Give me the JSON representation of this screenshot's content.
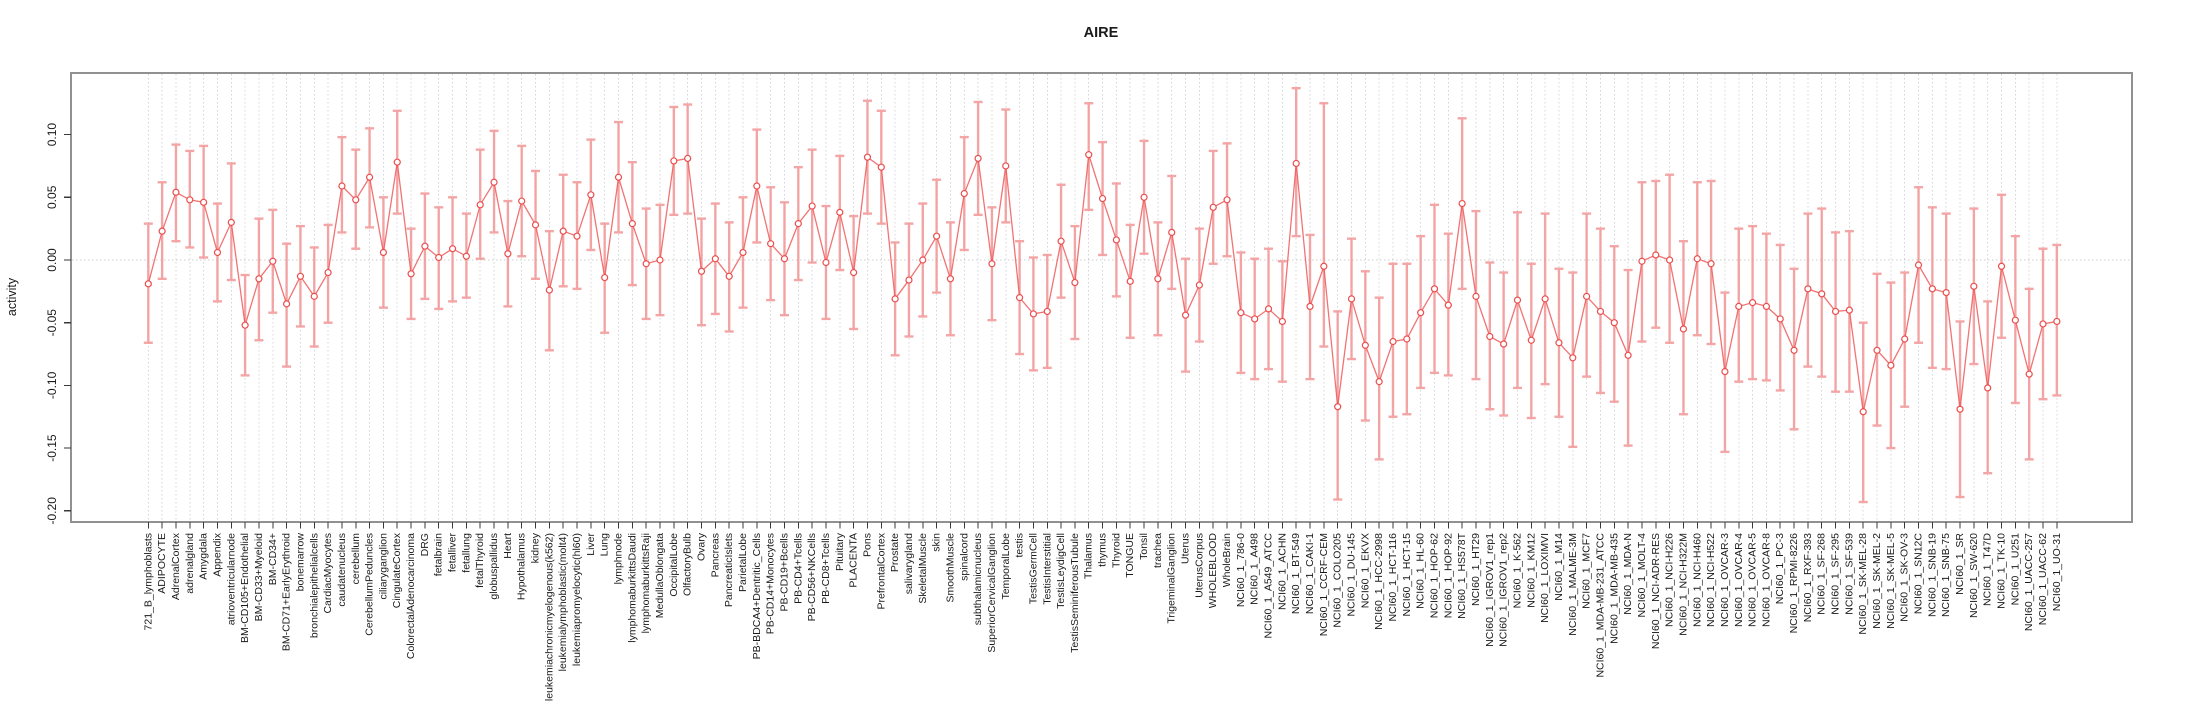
{
  "title": "AIRE",
  "y_axis": {
    "label": "activity",
    "tick_labels": [
      "0.10",
      "0.05",
      "0.00",
      "-0.05",
      "-0.10",
      "-0.15",
      "-0.20"
    ],
    "tick_values": [
      0.1,
      0.05,
      0.0,
      -0.05,
      -0.1,
      -0.15,
      -0.2
    ]
  },
  "colors": {
    "point": "#ec4d4d",
    "line": "#ee5a5a",
    "error_bar": "#f29191",
    "grid": "#d4d4d4",
    "zero_line": "#cfcfcf",
    "border": "#919191",
    "tick": "#3a3a3a",
    "text": "#1a1a1a",
    "background": "#ffffff"
  },
  "chart_data": {
    "type": "line",
    "title": "AIRE",
    "xlabel": "",
    "ylabel": "activity",
    "ylim": [
      -0.209,
      0.149
    ],
    "grid": "vertical dotted gridline per category; dotted horizontal line at 0",
    "legend": "none",
    "marker": "open-circle",
    "error_bars": true,
    "categories": [
      "721_B_lymphoblasts",
      "ADIPOCYTE",
      "AdrenalCortex",
      "adrenalgland",
      "Amygdala",
      "Appendix",
      "atrioventricularnode",
      "BM-CD105+Endothelial",
      "BM-CD33+Myeloid",
      "BM-CD34+",
      "BM-CD71+EarlyErythroid",
      "bonemarrow",
      "bronchialepithelialcells",
      "CardiacMyocytes",
      "caudatenucleus",
      "cerebellum",
      "CerebellumPeduncles",
      "ciliaryganglion",
      "CingulateCortex",
      "ColorectalAdenocarcinoma",
      "DRG",
      "fetalbrain",
      "fetalliver",
      "fetallung",
      "fetalThyroid",
      "globuspallidus",
      "Heart",
      "Hypothalamus",
      "kidney",
      "leukemiachronicmyelogenous(k562)",
      "leukemialymphoblastic(molt4)",
      "leukemiapromyelocytic(hl60)",
      "Liver",
      "Lung",
      "lymphnode",
      "lymphomaburkittsDaudi",
      "lymphomaburkittsRaji",
      "MedullaOblongata",
      "OccipitalLobe",
      "OlfactoryBulb",
      "Ovary",
      "Pancreas",
      "PancreaticIslets",
      "ParietalLobe",
      "PB-BDCA4+Dentritic_Cells",
      "PB-CD14+Monocytes",
      "PB-CD19+Bcells",
      "PB-CD4+Tcells",
      "PB-CD56+NKCells",
      "PB-CD8+Tcells",
      "Pituitary",
      "PLACENTA",
      "Pons",
      "PrefrontalCortex",
      "Prostate",
      "salivarygland",
      "SkeletalMuscle",
      "skin",
      "SmoothMuscle",
      "spinalcord",
      "subthalamicnucleus",
      "SuperiorCervicalGanglion",
      "TemporalLobe",
      "testis",
      "TestisGermCell",
      "TestisInterstitial",
      "TestisLeydigCell",
      "TestisSeminiferousTubule",
      "Thalamus",
      "thymus",
      "Thyroid",
      "TONGUE",
      "Tonsil",
      "trachea",
      "TrigeminalGanglion",
      "Uterus",
      "UterusCorpus",
      "WHOLEBLOOD",
      "WholeBrain",
      "NCI60_1_786-0",
      "NCI60_1_A498",
      "NCI60_1_A549_ATCC",
      "NCI60_1_ACHN",
      "NCI60_1_BT-549",
      "NCI60_1_CAKI-1",
      "NCI60_1_CCRF-CEM",
      "NCI60_1_COLO205",
      "NCI60_1_DU-145",
      "NCI60_1_EKVX",
      "NCI60_1_HCC-2998",
      "NCI60_1_HCT-116",
      "NCI60_1_HCT-15",
      "NCI60_1_HL-60",
      "NCI60_1_HOP-62",
      "NCI60_1_HOP-92",
      "NCI60_1_HS578T",
      "NCI60_1_HT29",
      "NCI60_1_IGROV1_rep1",
      "NCI60_1_IGROV1_rep2",
      "NCI60_1_K-562",
      "NCI60_1_KM12",
      "NCI60_1_LOXIMVI",
      "NCI60_1_M14",
      "NCI60_1_MALME-3M",
      "NCI60_1_MCF7",
      "NCI60_1_MDA-MB-231_ATCC",
      "NCI60_1_MDA-MB-435",
      "NCI60_1_MDA-N",
      "NCI60_1_MOLT-4",
      "NCI60_1_NCI-ADR-RES",
      "NCI60_1_NCI-H226",
      "NCI60_1_NCI-H322M",
      "NCI60_1_NCI-H460",
      "NCI60_1_NCI-H522",
      "NCI60_1_OVCAR-3",
      "NCI60_1_OVCAR-4",
      "NCI60_1_OVCAR-5",
      "NCI60_1_OVCAR-8",
      "NCI60_1_PC-3",
      "NCI60_1_RPMI-8226",
      "NCI60_1_RXF-393",
      "NCI60_1_SF-268",
      "NCI60_1_SF-295",
      "NCI60_1_SF-539",
      "NCI60_1_SK-MEL-28",
      "NCI60_1_SK-MEL-2",
      "NCI60_1_SK-MEL-5",
      "NCI60_1_SK-OV-3",
      "NCI60_1_SN12C",
      "NCI60_1_SNB-19",
      "NCI60_1_SNB-75",
      "NCI60_1_SR",
      "NCI60_1_SW-620",
      "NCI60_1_T47D",
      "NCI60_1_TK-10",
      "NCI60_1_U251",
      "NCI60_1_UACC-257",
      "NCI60_1_UACC-62",
      "NCI60_1_UO-31"
    ],
    "values": [
      -0.019,
      0.023,
      0.054,
      0.048,
      0.046,
      0.006,
      0.03,
      -0.052,
      -0.015,
      -0.001,
      -0.035,
      -0.013,
      -0.029,
      -0.01,
      0.059,
      0.048,
      0.066,
      0.006,
      0.078,
      -0.011,
      0.011,
      0.002,
      0.009,
      0.003,
      0.044,
      0.062,
      0.005,
      0.047,
      0.028,
      -0.024,
      0.023,
      0.019,
      0.052,
      -0.014,
      0.066,
      0.029,
      -0.003,
      0.0,
      0.079,
      0.081,
      -0.009,
      0.001,
      -0.013,
      0.006,
      0.059,
      0.013,
      0.001,
      0.029,
      0.043,
      -0.002,
      0.038,
      -0.01,
      0.082,
      0.074,
      -0.031,
      -0.016,
      0.0,
      0.019,
      -0.015,
      0.053,
      0.081,
      -0.003,
      0.075,
      -0.03,
      -0.043,
      -0.041,
      0.015,
      -0.018,
      0.084,
      0.049,
      0.016,
      -0.017,
      0.05,
      -0.015,
      0.022,
      -0.044,
      -0.02,
      0.042,
      0.048,
      -0.042,
      -0.047,
      -0.039,
      -0.049,
      0.077,
      -0.037,
      -0.005,
      -0.117,
      -0.031,
      -0.068,
      -0.097,
      -0.065,
      -0.063,
      -0.042,
      -0.023,
      -0.036,
      0.045,
      -0.029,
      -0.061,
      -0.067,
      -0.032,
      -0.064,
      -0.031,
      -0.066,
      -0.078,
      -0.029,
      -0.041,
      -0.05,
      -0.076,
      -0.001,
      0.004,
      0.0,
      -0.055,
      0.001,
      -0.003,
      -0.089,
      -0.037,
      -0.034,
      -0.037,
      -0.047,
      -0.072,
      -0.023,
      -0.027,
      -0.041,
      -0.04,
      -0.121,
      -0.072,
      -0.084,
      -0.063,
      -0.004,
      -0.023,
      -0.026,
      -0.119,
      -0.021,
      -0.102,
      -0.005,
      -0.048,
      -0.091,
      -0.051,
      -0.049
    ],
    "err_lo": [
      -0.066,
      -0.015,
      0.015,
      0.01,
      0.002,
      -0.033,
      -0.016,
      -0.092,
      -0.064,
      -0.042,
      -0.085,
      -0.053,
      -0.069,
      -0.05,
      0.022,
      0.009,
      0.026,
      -0.038,
      0.037,
      -0.047,
      -0.031,
      -0.039,
      -0.033,
      -0.03,
      0.001,
      0.022,
      -0.037,
      0.003,
      -0.015,
      -0.072,
      -0.021,
      -0.023,
      0.008,
      -0.058,
      0.022,
      -0.02,
      -0.047,
      -0.044,
      0.036,
      0.037,
      -0.052,
      -0.043,
      -0.057,
      -0.038,
      0.014,
      -0.032,
      -0.044,
      -0.016,
      -0.002,
      -0.047,
      -0.008,
      -0.055,
      0.037,
      0.029,
      -0.076,
      -0.061,
      -0.045,
      -0.026,
      -0.06,
      0.008,
      0.036,
      -0.048,
      0.03,
      -0.075,
      -0.088,
      -0.086,
      -0.03,
      -0.063,
      0.04,
      0.004,
      -0.029,
      -0.062,
      0.005,
      -0.06,
      -0.023,
      -0.089,
      -0.065,
      -0.003,
      0.003,
      -0.09,
      -0.095,
      -0.087,
      -0.097,
      0.019,
      -0.095,
      -0.069,
      -0.191,
      -0.079,
      -0.128,
      -0.159,
      -0.125,
      -0.123,
      -0.102,
      -0.09,
      -0.092,
      -0.023,
      -0.095,
      -0.119,
      -0.124,
      -0.102,
      -0.126,
      -0.099,
      -0.125,
      -0.149,
      -0.093,
      -0.106,
      -0.113,
      -0.148,
      -0.065,
      -0.054,
      -0.066,
      -0.123,
      -0.06,
      -0.067,
      -0.153,
      -0.097,
      -0.095,
      -0.096,
      -0.104,
      -0.135,
      -0.085,
      -0.093,
      -0.105,
      -0.105,
      -0.193,
      -0.132,
      -0.15,
      -0.117,
      -0.066,
      -0.086,
      -0.087,
      -0.189,
      -0.083,
      -0.17,
      -0.062,
      -0.114,
      -0.159,
      -0.111,
      -0.108
    ],
    "err_hi": [
      0.029,
      0.062,
      0.092,
      0.087,
      0.091,
      0.045,
      0.077,
      -0.012,
      0.033,
      0.04,
      0.013,
      0.027,
      0.01,
      0.028,
      0.098,
      0.088,
      0.105,
      0.05,
      0.119,
      0.025,
      0.053,
      0.042,
      0.05,
      0.037,
      0.088,
      0.103,
      0.047,
      0.091,
      0.071,
      0.023,
      0.068,
      0.062,
      0.096,
      0.029,
      0.11,
      0.078,
      0.041,
      0.044,
      0.122,
      0.124,
      0.033,
      0.045,
      0.03,
      0.05,
      0.104,
      0.058,
      0.046,
      0.074,
      0.088,
      0.043,
      0.083,
      0.035,
      0.127,
      0.119,
      0.014,
      0.029,
      0.045,
      0.064,
      0.03,
      0.098,
      0.126,
      0.042,
      0.12,
      0.015,
      0.002,
      0.004,
      0.06,
      0.027,
      0.125,
      0.094,
      0.061,
      0.028,
      0.095,
      0.03,
      0.067,
      0.001,
      0.025,
      0.087,
      0.093,
      0.006,
      0.001,
      0.009,
      -0.001,
      0.137,
      0.02,
      0.125,
      -0.041,
      0.017,
      -0.009,
      -0.03,
      -0.003,
      -0.003,
      0.019,
      0.044,
      0.021,
      0.113,
      0.039,
      -0.002,
      -0.01,
      0.038,
      -0.003,
      0.037,
      -0.007,
      -0.01,
      0.037,
      0.025,
      0.011,
      -0.008,
      0.062,
      0.063,
      0.068,
      0.015,
      0.062,
      0.063,
      -0.026,
      0.025,
      0.027,
      0.021,
      0.012,
      -0.007,
      0.037,
      0.041,
      0.022,
      0.023,
      -0.05,
      -0.011,
      -0.018,
      -0.01,
      0.058,
      0.042,
      0.037,
      -0.049,
      0.041,
      -0.033,
      0.052,
      0.019,
      -0.023,
      0.009,
      0.012
    ]
  }
}
